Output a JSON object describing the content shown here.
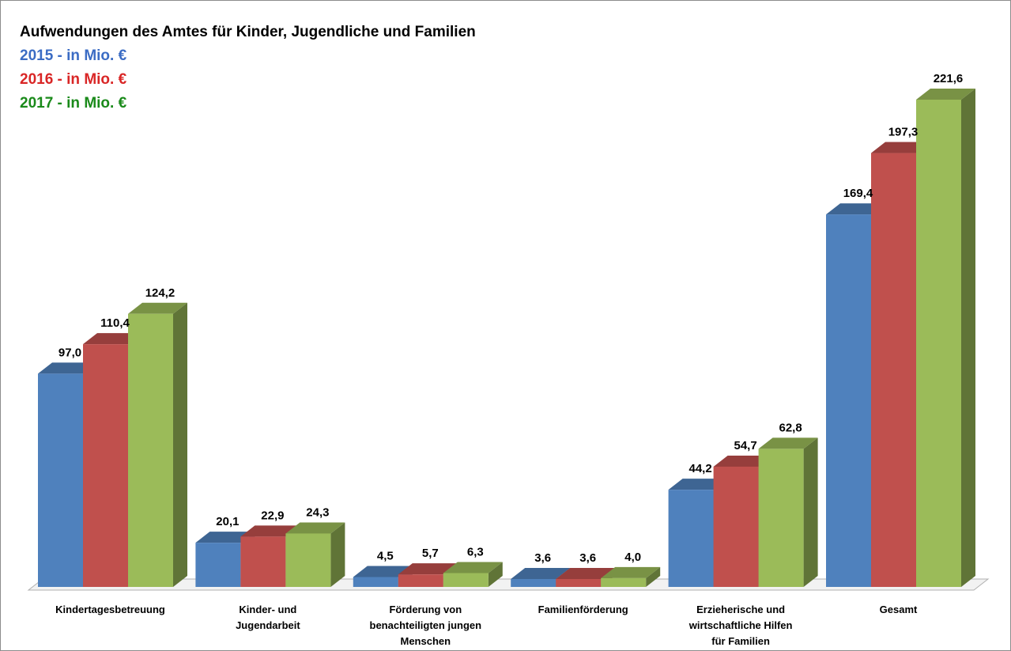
{
  "chart_data": {
    "type": "bar",
    "title": "Aufwendungen des Amtes für Kinder, Jugendliche und Familien",
    "categories": [
      [
        "Kindertagesbetreuung"
      ],
      [
        "Kinder- und",
        "Jugendarbeit"
      ],
      [
        "Förderung von",
        "benachteiligten jungen",
        "Menschen"
      ],
      [
        "Familienförderung"
      ],
      [
        "Erzieherische und",
        "wirtschaftliche Hilfen",
        "für Familien"
      ],
      [
        "Gesamt"
      ]
    ],
    "series": [
      {
        "name": "2015 - in Mio. €",
        "color": "#4f81bd",
        "values": [
          97.0,
          20.1,
          4.5,
          3.6,
          44.2,
          169.4
        ],
        "labels": [
          "97,0",
          "20,1",
          "4,5",
          "3,6",
          "44,2",
          "169,4"
        ]
      },
      {
        "name": "2016 - in Mio. €",
        "color": "#c0504d",
        "values": [
          110.4,
          22.9,
          5.7,
          3.6,
          54.7,
          197.3
        ],
        "labels": [
          "110,4",
          "22,9",
          "5,7",
          "3,6",
          "54,7",
          "197,3"
        ]
      },
      {
        "name": "2017 - in Mio. €",
        "color": "#9bbb59",
        "values": [
          124.2,
          24.3,
          6.3,
          4.0,
          62.8,
          221.6
        ],
        "labels": [
          "124,2",
          "24,3",
          "6,3",
          "4,0",
          "62,8",
          "221,6"
        ]
      }
    ],
    "legend_colors": [
      "#3b6cc4",
      "#d92626",
      "#1a8a1a"
    ],
    "ylim": [
      0,
      225
    ],
    "grid": false,
    "legend": "top-left"
  }
}
